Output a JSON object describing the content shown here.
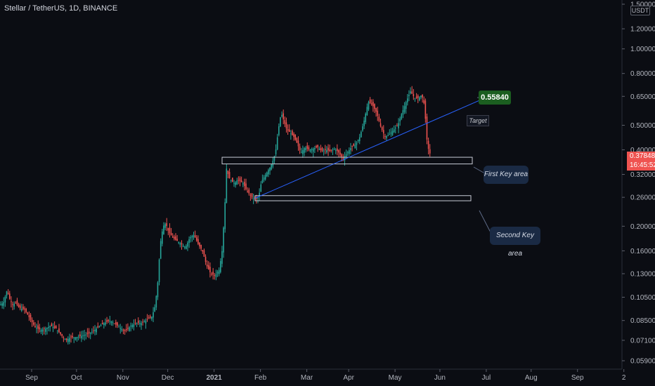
{
  "header": {
    "title": "Stellar / TetherUS, 1D, BINANCE",
    "currency_badge": "USDT"
  },
  "price_tag": {
    "price": "0.37848",
    "countdown": "16:45:52"
  },
  "annotations": {
    "target_value": "0.55840",
    "target_label": "Target",
    "first_key_area": "First Key area",
    "second_key_area": "Second Key area"
  },
  "colors": {
    "background": "#0b0d13",
    "up": "#26a69a",
    "down": "#ef5350",
    "trendline": "#2962ff",
    "axis_text": "#b2b5be",
    "target_badge": "#1b5e20",
    "key_area_box": "#1a2a44"
  },
  "chart_data": {
    "type": "candlestick",
    "title": "Stellar / TetherUS, 1D, BINANCE",
    "y_scale": "log",
    "ylim": [
      0.056,
      1.5
    ],
    "x_tick_labels": [
      "Sep",
      "Oct",
      "Nov",
      "Dec",
      "2021",
      "Feb",
      "Mar",
      "Apr",
      "May",
      "Jun",
      "Jul",
      "Aug",
      "Sep",
      "2"
    ],
    "y_tick_labels": [
      "1.50000",
      "1.20000",
      "1.00000",
      "0.80000",
      "0.65000",
      "0.50000",
      "0.40000",
      "0.32000",
      "0.26000",
      "0.20000",
      "0.16000",
      "0.13000",
      "0.10500",
      "0.08500",
      "0.07100",
      "0.05900"
    ],
    "y_tick_values": [
      1.5,
      1.2,
      1.0,
      0.8,
      0.65,
      0.5,
      0.4,
      0.32,
      0.26,
      0.2,
      0.16,
      0.13,
      0.105,
      0.085,
      0.071,
      0.059
    ],
    "price_path": [
      [
        0,
        0.098
      ],
      [
        5,
        0.1
      ],
      [
        10,
        0.112
      ],
      [
        14,
        0.103
      ],
      [
        18,
        0.098
      ],
      [
        22,
        0.1
      ],
      [
        28,
        0.095
      ],
      [
        35,
        0.094
      ],
      [
        42,
        0.087
      ],
      [
        50,
        0.08
      ],
      [
        58,
        0.078
      ],
      [
        65,
        0.079
      ],
      [
        72,
        0.081
      ],
      [
        80,
        0.079
      ],
      [
        88,
        0.074
      ],
      [
        94,
        0.071
      ],
      [
        100,
        0.073
      ],
      [
        108,
        0.073
      ],
      [
        116,
        0.074
      ],
      [
        124,
        0.075
      ],
      [
        132,
        0.077
      ],
      [
        140,
        0.08
      ],
      [
        148,
        0.083
      ],
      [
        156,
        0.085
      ],
      [
        162,
        0.083
      ],
      [
        170,
        0.08
      ],
      [
        178,
        0.077
      ],
      [
        186,
        0.081
      ],
      [
        194,
        0.083
      ],
      [
        202,
        0.083
      ],
      [
        210,
        0.086
      ],
      [
        216,
        0.088
      ],
      [
        220,
        0.095
      ],
      [
        224,
        0.115
      ],
      [
        228,
        0.17
      ],
      [
        232,
        0.2
      ],
      [
        236,
        0.205
      ],
      [
        240,
        0.19
      ],
      [
        246,
        0.18
      ],
      [
        252,
        0.175
      ],
      [
        258,
        0.17
      ],
      [
        264,
        0.165
      ],
      [
        270,
        0.18
      ],
      [
        276,
        0.185
      ],
      [
        282,
        0.17
      ],
      [
        288,
        0.16
      ],
      [
        294,
        0.14
      ],
      [
        300,
        0.13
      ],
      [
        306,
        0.128
      ],
      [
        312,
        0.135
      ],
      [
        316,
        0.16
      ],
      [
        320,
        0.24
      ],
      [
        322,
        0.34
      ],
      [
        326,
        0.31
      ],
      [
        330,
        0.3
      ],
      [
        334,
        0.295
      ],
      [
        338,
        0.305
      ],
      [
        342,
        0.3
      ],
      [
        346,
        0.295
      ],
      [
        350,
        0.28
      ],
      [
        354,
        0.27
      ],
      [
        358,
        0.26
      ],
      [
        364,
        0.255
      ],
      [
        368,
        0.26
      ],
      [
        372,
        0.3
      ],
      [
        378,
        0.32
      ],
      [
        384,
        0.34
      ],
      [
        388,
        0.36
      ],
      [
        392,
        0.39
      ],
      [
        396,
        0.48
      ],
      [
        400,
        0.56
      ],
      [
        404,
        0.52
      ],
      [
        408,
        0.48
      ],
      [
        412,
        0.47
      ],
      [
        418,
        0.45
      ],
      [
        422,
        0.43
      ],
      [
        428,
        0.39
      ],
      [
        434,
        0.41
      ],
      [
        440,
        0.4
      ],
      [
        446,
        0.405
      ],
      [
        452,
        0.41
      ],
      [
        458,
        0.395
      ],
      [
        464,
        0.4
      ],
      [
        470,
        0.395
      ],
      [
        476,
        0.405
      ],
      [
        482,
        0.39
      ],
      [
        488,
        0.37
      ],
      [
        494,
        0.39
      ],
      [
        500,
        0.41
      ],
      [
        506,
        0.42
      ],
      [
        512,
        0.45
      ],
      [
        518,
        0.52
      ],
      [
        524,
        0.62
      ],
      [
        530,
        0.6
      ],
      [
        536,
        0.56
      ],
      [
        542,
        0.49
      ],
      [
        548,
        0.45
      ],
      [
        554,
        0.46
      ],
      [
        560,
        0.48
      ],
      [
        566,
        0.5
      ],
      [
        572,
        0.56
      ],
      [
        578,
        0.62
      ],
      [
        584,
        0.68
      ],
      [
        590,
        0.64
      ],
      [
        596,
        0.64
      ],
      [
        600,
        0.66
      ],
      [
        604,
        0.6
      ],
      [
        606,
        0.5
      ],
      [
        608,
        0.42
      ],
      [
        610,
        0.4
      ],
      [
        613,
        0.378
      ]
    ],
    "trendline": {
      "from": [
        363,
        0.258
      ],
      "to": [
        687,
        0.635
      ]
    },
    "first_key_area": {
      "x_from": 316,
      "x_to": 672,
      "low": 0.352,
      "high": 0.374
    },
    "second_key_area": {
      "x_from": 363,
      "x_to": 670,
      "low": 0.252,
      "high": 0.264
    },
    "last_price": 0.37848,
    "grid": false
  }
}
